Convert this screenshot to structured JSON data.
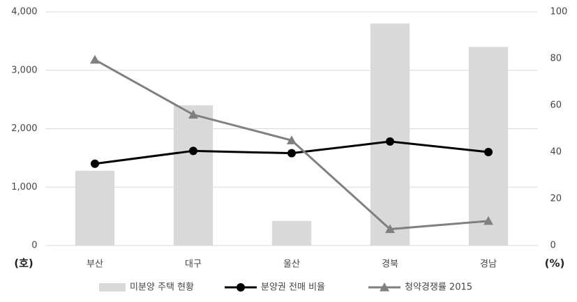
{
  "chart_data": {
    "type": "combo",
    "categories": [
      "부산",
      "대구",
      "울산",
      "경북",
      "경남"
    ],
    "x_unit": "(호)",
    "y2_unit": "(%)",
    "ylim": [
      0,
      4000
    ],
    "yticks": [
      {
        "value": 0,
        "label": "0"
      },
      {
        "value": 1000,
        "label": "1,000"
      },
      {
        "value": 2000,
        "label": "2,000"
      },
      {
        "value": 3000,
        "label": "3,000"
      },
      {
        "value": 4000,
        "label": "4,000"
      }
    ],
    "y2lim": [
      0,
      100
    ],
    "y2ticks": [
      0,
      20,
      40,
      60,
      80,
      100
    ],
    "grid": true,
    "legend": "bottom",
    "series": [
      {
        "name": "미분양 주택 현황",
        "type": "bar",
        "color": "#d9d9d9",
        "values": [
          1280,
          2400,
          420,
          3800,
          3400
        ]
      },
      {
        "name": "분양권 전매 비율",
        "type": "line",
        "marker": "circle",
        "axis": "y2",
        "color": "#000000",
        "values": [
          35,
          40.5,
          39.5,
          44.5,
          40
        ]
      },
      {
        "name": "청약경쟁률 2015",
        "type": "line",
        "marker": "triangle",
        "axis": "y2",
        "color": "#808080",
        "values": [
          79.5,
          56,
          45,
          7,
          10.5
        ]
      }
    ]
  }
}
